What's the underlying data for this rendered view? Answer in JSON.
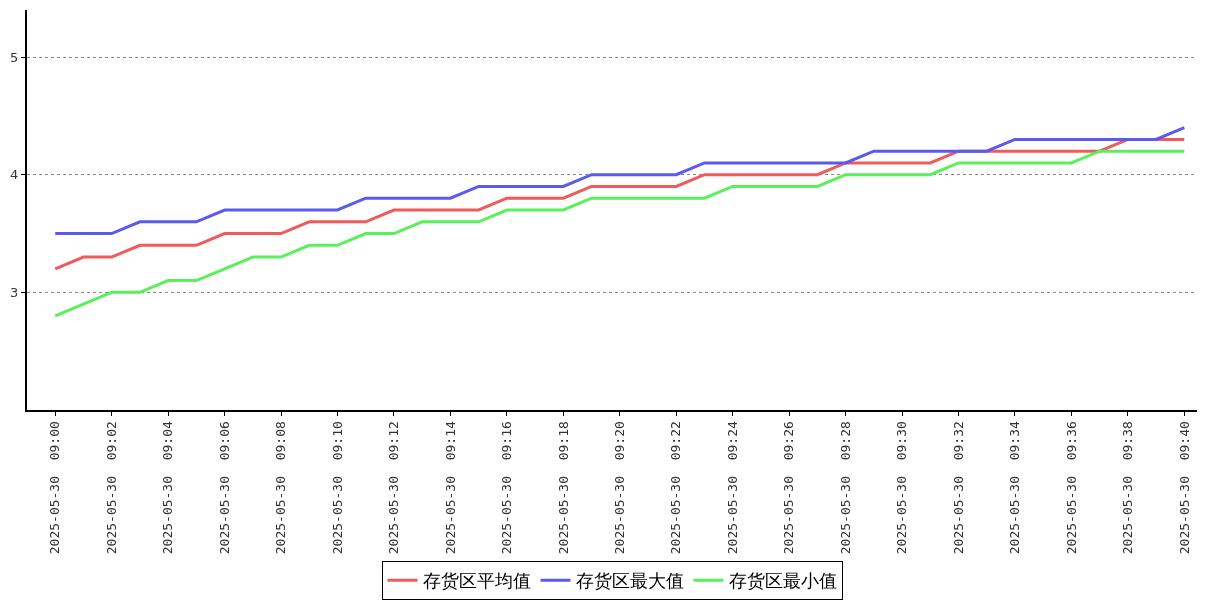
{
  "chart_data": {
    "type": "line",
    "categories": [
      "2025-05-30  09:00",
      null,
      "2025-05-30  09:02",
      null,
      "2025-05-30  09:04",
      null,
      "2025-05-30  09:06",
      null,
      "2025-05-30  09:08",
      null,
      "2025-05-30  09:10",
      null,
      "2025-05-30  09:12",
      null,
      "2025-05-30  09:14",
      null,
      "2025-05-30  09:16",
      null,
      "2025-05-30  09:18",
      null,
      "2025-05-30  09:20",
      null,
      "2025-05-30  09:22",
      null,
      "2025-05-30  09:24",
      null,
      "2025-05-30  09:26",
      null,
      "2025-05-30  09:28",
      null,
      "2025-05-30  09:30",
      null,
      "2025-05-30  09:32",
      null,
      "2025-05-30  09:34",
      null,
      "2025-05-30  09:36",
      null,
      "2025-05-30  09:38",
      null,
      "2025-05-30  09:40"
    ],
    "series": [
      {
        "name": "存货区平均值",
        "color": "#f05a5a",
        "values": [
          3.2,
          3.3,
          3.3,
          3.4,
          3.4,
          3.4,
          3.5,
          3.5,
          3.5,
          3.6,
          3.6,
          3.6,
          3.7,
          3.7,
          3.7,
          3.7,
          3.8,
          3.8,
          3.8,
          3.9,
          3.9,
          3.9,
          3.9,
          4.0,
          4.0,
          4.0,
          4.0,
          4.0,
          4.1,
          4.1,
          4.1,
          4.1,
          4.2,
          4.2,
          4.2,
          4.2,
          4.2,
          4.2,
          4.3,
          4.3,
          4.3
        ]
      },
      {
        "name": "存货区最大值",
        "color": "#5a5af0",
        "values": [
          3.5,
          3.5,
          3.5,
          3.6,
          3.6,
          3.6,
          3.7,
          3.7,
          3.7,
          3.7,
          3.7,
          3.8,
          3.8,
          3.8,
          3.8,
          3.9,
          3.9,
          3.9,
          3.9,
          4.0,
          4.0,
          4.0,
          4.0,
          4.1,
          4.1,
          4.1,
          4.1,
          4.1,
          4.1,
          4.2,
          4.2,
          4.2,
          4.2,
          4.2,
          4.3,
          4.3,
          4.3,
          4.3,
          4.3,
          4.3,
          4.4
        ]
      },
      {
        "name": "存货区最小值",
        "color": "#5af05a",
        "values": [
          2.8,
          2.9,
          3.0,
          3.0,
          3.1,
          3.1,
          3.2,
          3.3,
          3.3,
          3.4,
          3.4,
          3.5,
          3.5,
          3.6,
          3.6,
          3.6,
          3.7,
          3.7,
          3.7,
          3.8,
          3.8,
          3.8,
          3.8,
          3.8,
          3.9,
          3.9,
          3.9,
          3.9,
          4.0,
          4.0,
          4.0,
          4.0,
          4.1,
          4.1,
          4.1,
          4.1,
          4.1,
          4.2,
          4.2,
          4.2,
          4.2
        ]
      }
    ],
    "ylim": [
      2,
      5.4
    ],
    "yticks": [
      3,
      4,
      5
    ],
    "grid": "y",
    "legend": "bottom",
    "marker": "none",
    "line_style": "solid"
  }
}
